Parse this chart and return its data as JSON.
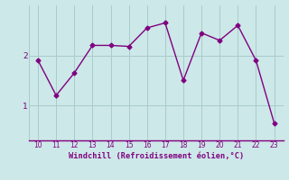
{
  "x": [
    10,
    11,
    12,
    13,
    14,
    15,
    16,
    17,
    18,
    19,
    20,
    21,
    22,
    23
  ],
  "y": [
    1.9,
    1.2,
    1.65,
    2.2,
    2.2,
    2.18,
    2.55,
    2.65,
    1.5,
    2.45,
    2.3,
    2.6,
    1.9,
    0.65
  ],
  "line_color": "#800080",
  "marker": "D",
  "marker_size": 2.5,
  "bg_color": "#cce8e8",
  "grid_color": "#aacccc",
  "xlabel": "Windchill (Refroidissement éolien,°C)",
  "xlabel_color": "#800080",
  "tick_color": "#800080",
  "xlim": [
    9.5,
    23.5
  ],
  "ylim": [
    0.3,
    3.0
  ],
  "yticks": [
    1,
    2
  ],
  "xticks": [
    10,
    11,
    12,
    13,
    14,
    15,
    16,
    17,
    18,
    19,
    20,
    21,
    22,
    23
  ]
}
